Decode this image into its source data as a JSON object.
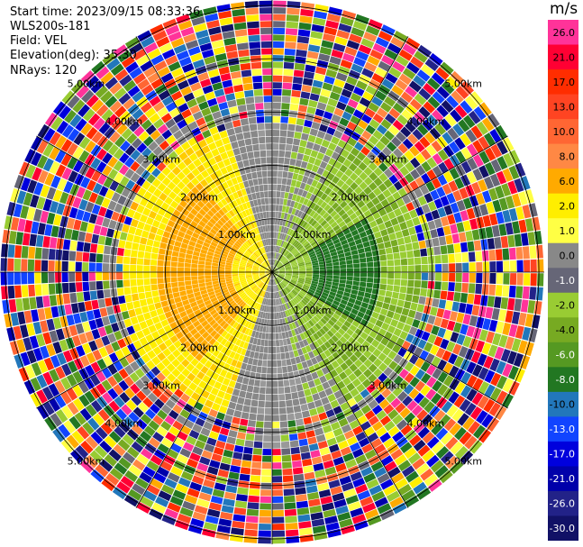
{
  "info": {
    "start_time": "Start time: 2023/09/15 08:33:36",
    "instrument": "WLS200s-181",
    "field": "Field: VEL",
    "elevation": "Elevation(deg): 35.30",
    "nrays": "NRays: 120"
  },
  "colorbar": {
    "unit": "m/s",
    "ticks": [
      "26.0",
      "21.0",
      "17.0",
      "13.0",
      "10.0",
      "8.0",
      "6.0",
      "2.0",
      "1.0",
      "0.0",
      "-1.0",
      "-2.0",
      "-4.0",
      "-6.0",
      "-8.0",
      "-10.0",
      "-13.0",
      "-17.0",
      "-21.0",
      "-26.0",
      "-30.0"
    ],
    "colors": [
      "#ff3399",
      "#ff0033",
      "#ff2d00",
      "#ff4422",
      "#ff6633",
      "#ff8844",
      "#ffaa00",
      "#ffee00",
      "#ffff44",
      "#888888",
      "#666677",
      "#99cc33",
      "#77aa22",
      "#559922",
      "#227722",
      "#2277bb",
      "#1144ff",
      "#0000dd",
      "#0000aa",
      "#222288",
      "#111166"
    ]
  },
  "chart_data": {
    "type": "heatmap",
    "projection": "polar PPI",
    "field": "VEL",
    "unit": "m/s",
    "nrays": 120,
    "ring_labels": [
      "1.00km",
      "2.00km",
      "3.00km",
      "4.00km",
      "5.00km"
    ],
    "color_scale_ticks": [
      26.0,
      21.0,
      17.0,
      13.0,
      10.0,
      8.0,
      6.0,
      2.0,
      1.0,
      0.0,
      -1.0,
      -2.0,
      -4.0,
      -6.0,
      -8.0,
      -10.0,
      -13.0,
      -17.0,
      -21.0,
      -26.0,
      -30.0
    ]
  }
}
